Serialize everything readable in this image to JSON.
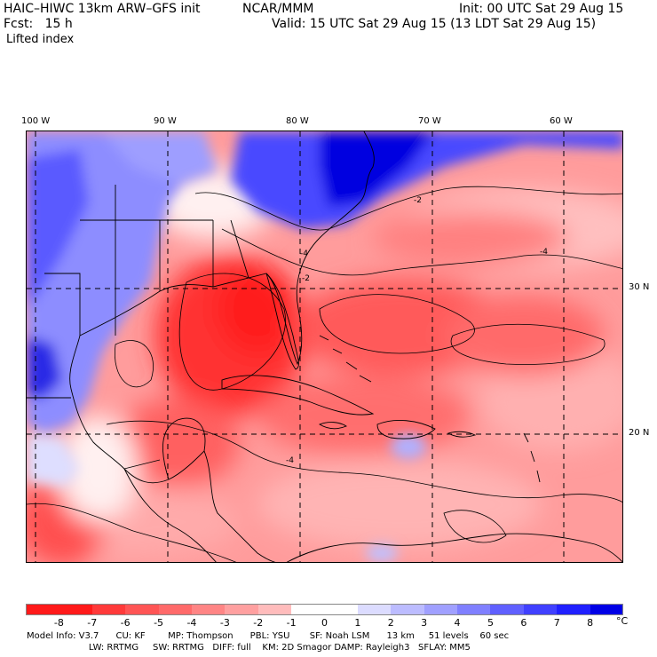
{
  "header": {
    "model": "HAIC–HIWC 13km ARW–GFS init",
    "org": "NCAR/MMM",
    "init": "Init: 00 UTC Sat 29 Aug 15",
    "fcst": "Fcst:   15 h",
    "valid": "Valid: 15 UTC Sat 29 Aug 15 (13 LDT Sat 29 Aug 15)",
    "field": "Lifted index"
  },
  "map": {
    "lon_labels": [
      "100 W",
      "90 W",
      "80 W",
      "70 W",
      "60 W"
    ],
    "lat_labels": [
      "30 N",
      "20 N"
    ],
    "contour_labels": [
      "-2",
      "-4",
      "-2",
      "-4",
      "-4"
    ]
  },
  "colorbar": {
    "unit": "°C",
    "tick_labels": [
      "-8",
      "-7",
      "-6",
      "-5",
      "-4",
      "-3",
      "-2",
      "-1",
      "0",
      "1",
      "2",
      "3",
      "4",
      "5",
      "6",
      "7",
      "8"
    ],
    "colors": [
      "#ff1a1a",
      "#ff3a3a",
      "#ff5555",
      "#ff6a6a",
      "#ff8585",
      "#ffa0a0",
      "#ffbcbc",
      "#ffdada",
      "#ffffff",
      "#dcdcff",
      "#bcbcff",
      "#a0a0ff",
      "#8080ff",
      "#6060ff",
      "#4040ff",
      "#2020ff",
      "#0000e6"
    ]
  },
  "footer": {
    "line1": "Model Info: V3.7      CU: KF        MP: Thompson      PBL: YSU       SF: Noah LSM      13 km     51 levels    60 sec",
    "line2": "                      LW: RRTMG     SW: RRTMG   DIFF: full    KM: 2D Smagor DAMP: Rayleigh3   SFLAY: MM5"
  }
}
